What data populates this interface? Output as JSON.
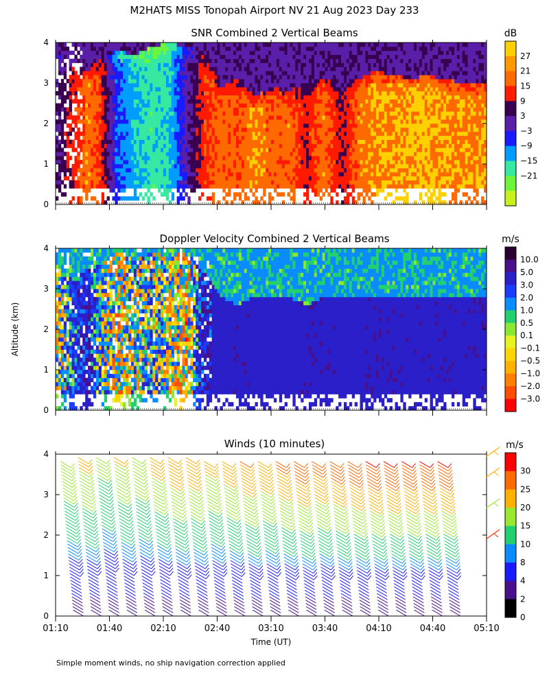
{
  "title": "M2HATS MISS Tonopah Airport NV  21 Aug 2023 Day 233",
  "footnote": "Simple moment winds, no ship navigation correction applied",
  "ylabel": "Altitude (km)",
  "xlabel": "Time (UT)",
  "chart_data": [
    {
      "type": "heatmap",
      "title": "SNR Combined 2 Vertical Beams",
      "units": "dB",
      "ylim": [
        0,
        4
      ],
      "yticks": [
        "0",
        "1",
        "2",
        "3",
        "4"
      ],
      "colorbar": {
        "labels": [
          "27",
          "21",
          "15",
          "9",
          "3",
          "−3",
          "−9",
          "−15",
          "−21"
        ],
        "colors": [
          "#ffd000",
          "#ff9900",
          "#ff6a00",
          "#ff1a00",
          "#3a0050",
          "#5a1fa8",
          "#1a1aff",
          "#009cff",
          "#36e8a0",
          "#6cf53a",
          "#c8f21e"
        ]
      },
      "columns": [
        {
          "t": 0.0,
          "top": 3.7,
          "v": 9
        },
        {
          "t": 0.04,
          "top": 3.5,
          "v": 17
        },
        {
          "t": 0.07,
          "top": 3.3,
          "v": 25
        },
        {
          "t": 0.1,
          "top": 3.6,
          "v": 20
        },
        {
          "t": 0.14,
          "top": 3.8,
          "v": -2
        },
        {
          "t": 0.18,
          "top": 3.7,
          "v": -8
        },
        {
          "t": 0.22,
          "top": 3.9,
          "v": -12
        },
        {
          "t": 0.26,
          "top": 4.0,
          "v": -10
        },
        {
          "t": 0.3,
          "top": 3.9,
          "v": 5
        },
        {
          "t": 0.34,
          "top": 3.8,
          "v": 18
        },
        {
          "t": 0.38,
          "top": 2.9,
          "v": 24
        },
        {
          "t": 0.42,
          "top": 3.1,
          "v": 22
        },
        {
          "t": 0.46,
          "top": 2.7,
          "v": 26
        },
        {
          "t": 0.5,
          "top": 2.9,
          "v": 23
        },
        {
          "t": 0.54,
          "top": 2.8,
          "v": 24
        },
        {
          "t": 0.58,
          "top": 3.0,
          "v": 16
        },
        {
          "t": 0.62,
          "top": 3.1,
          "v": 25
        },
        {
          "t": 0.66,
          "top": 3.0,
          "v": 14
        },
        {
          "t": 0.7,
          "top": 3.1,
          "v": 24
        },
        {
          "t": 0.74,
          "top": 3.3,
          "v": 27
        },
        {
          "t": 0.78,
          "top": 3.2,
          "v": 27
        },
        {
          "t": 0.82,
          "top": 3.1,
          "v": 28
        },
        {
          "t": 0.86,
          "top": 3.2,
          "v": 28
        },
        {
          "t": 0.9,
          "top": 3.1,
          "v": 27
        },
        {
          "t": 0.94,
          "top": 3.0,
          "v": 26
        }
      ]
    },
    {
      "type": "heatmap",
      "title": "Doppler Velocity Combined 2 Vertical Beams",
      "units": "m/s",
      "ylim": [
        0,
        4
      ],
      "yticks": [
        "0",
        "1",
        "2",
        "3",
        "4"
      ],
      "colorbar": {
        "labels": [
          "10.0",
          "5.0",
          "3.0",
          "2.0",
          "1.0",
          "0.5",
          "0.1",
          "−0.1",
          "−0.5",
          "−1.0",
          "−2.0",
          "−3.0"
        ],
        "colors": [
          "#2b0033",
          "#4a0f8a",
          "#2a1fc8",
          "#1a3cff",
          "#0a8cff",
          "#22d070",
          "#8be832",
          "#e8f21e",
          "#ffd400",
          "#ffb000",
          "#ff8000",
          "#ff4d00",
          "#ff0000"
        ]
      },
      "columns": [
        {
          "t": 0.0,
          "top": 3.5,
          "v": 0.3
        },
        {
          "t": 0.04,
          "top": 3.3,
          "v": 2.5
        },
        {
          "t": 0.07,
          "top": 3.5,
          "v": 4.0
        },
        {
          "t": 0.1,
          "top": 3.6,
          "v": 1.5
        },
        {
          "t": 0.14,
          "top": 3.9,
          "v": -0.3
        },
        {
          "t": 0.18,
          "top": 3.7,
          "v": 0.8
        },
        {
          "t": 0.22,
          "top": 3.9,
          "v": 1.2
        },
        {
          "t": 0.26,
          "top": 3.8,
          "v": 0.6
        },
        {
          "t": 0.3,
          "top": 3.9,
          "v": -0.8
        },
        {
          "t": 0.34,
          "top": 3.5,
          "v": 4.0
        },
        {
          "t": 0.38,
          "top": 2.8,
          "v": 4.2
        },
        {
          "t": 0.42,
          "top": 2.6,
          "v": 4.5
        },
        {
          "t": 0.46,
          "top": 2.8,
          "v": 4.4
        },
        {
          "t": 0.5,
          "top": 2.8,
          "v": 4.3
        },
        {
          "t": 0.54,
          "top": 2.8,
          "v": 4.2
        },
        {
          "t": 0.58,
          "top": 2.6,
          "v": 4.6
        },
        {
          "t": 0.62,
          "top": 2.8,
          "v": 4.5
        },
        {
          "t": 0.66,
          "top": 2.8,
          "v": 4.4
        },
        {
          "t": 0.7,
          "top": 2.8,
          "v": 4.4
        },
        {
          "t": 0.74,
          "top": 2.8,
          "v": 4.6
        },
        {
          "t": 0.78,
          "top": 2.8,
          "v": 4.5
        },
        {
          "t": 0.82,
          "top": 2.8,
          "v": 4.4
        },
        {
          "t": 0.86,
          "top": 2.8,
          "v": 4.5
        },
        {
          "t": 0.9,
          "top": 2.8,
          "v": 4.5
        },
        {
          "t": 0.94,
          "top": 2.8,
          "v": 4.4
        }
      ]
    },
    {
      "type": "scatter",
      "title": "Winds (10 minutes)",
      "units": "m/s",
      "ylim": [
        0,
        4
      ],
      "yticks": [
        "0",
        "1",
        "2",
        "3",
        "4"
      ],
      "xticks": [
        "01:10",
        "01:40",
        "02:10",
        "02:40",
        "03:10",
        "03:40",
        "04:10",
        "04:40",
        "05:10"
      ],
      "colorbar": {
        "labels": [
          "30",
          "25",
          "20",
          "15",
          "10",
          "8",
          "4",
          "2",
          "0"
        ],
        "colors": [
          "#ff0000",
          "#ff6a00",
          "#ffb000",
          "#9be830",
          "#22d070",
          "#0a8cff",
          "#1a1aff",
          "#4a0f8a",
          "#000000"
        ]
      },
      "profiles": [
        {
          "t": "01:20",
          "top": 3.9,
          "max": 20
        },
        {
          "t": "01:30",
          "top": 4.0,
          "max": 22
        },
        {
          "t": "01:40",
          "top": 4.0,
          "max": 17
        },
        {
          "t": "01:50",
          "top": 4.0,
          "max": 21
        },
        {
          "t": "02:00",
          "top": 4.0,
          "max": 20
        },
        {
          "t": "02:10",
          "top": 4.0,
          "max": 23
        },
        {
          "t": "02:20",
          "top": 4.0,
          "max": 25
        },
        {
          "t": "02:30",
          "top": 4.0,
          "max": 25
        },
        {
          "t": "02:40",
          "top": 3.9,
          "max": 22
        },
        {
          "t": "02:50",
          "top": 3.9,
          "max": 24
        },
        {
          "t": "03:00",
          "top": 3.9,
          "max": 26
        },
        {
          "t": "03:10",
          "top": 3.9,
          "max": 25
        },
        {
          "t": "03:20",
          "top": 3.9,
          "max": 27
        },
        {
          "t": "03:30",
          "top": 3.9,
          "max": 29
        },
        {
          "t": "03:40",
          "top": 3.9,
          "max": 28
        },
        {
          "t": "03:50",
          "top": 3.9,
          "max": 29
        },
        {
          "t": "04:00",
          "top": 3.9,
          "max": 30
        },
        {
          "t": "04:10",
          "top": 3.9,
          "max": 31
        },
        {
          "t": "04:20",
          "top": 3.9,
          "max": 31
        },
        {
          "t": "04:30",
          "top": 3.9,
          "max": 31
        },
        {
          "t": "04:40",
          "top": 3.9,
          "max": 31
        },
        {
          "t": "04:50",
          "top": 3.9,
          "max": 31
        }
      ]
    }
  ]
}
